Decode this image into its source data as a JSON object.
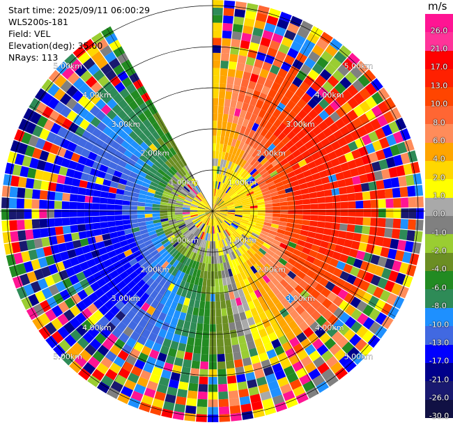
{
  "info": {
    "start_time": "Start time: 2025/09/11 06:00:29",
    "instrument": "WLS200s-181",
    "field": "Field: VEL",
    "elevation": "Elevation(deg): 35.00",
    "nrays": "NRays: 113"
  },
  "chart_data": {
    "type": "heatmap",
    "projection": "polar PPI",
    "field": "VEL",
    "units": "m/s",
    "range_rings_km": [
      1,
      2,
      3,
      4,
      5
    ],
    "range_ring_labels": [
      "1.00km",
      "2.00km",
      "3.00km",
      "4.00km",
      "5.00km"
    ],
    "rays": 113,
    "gates": 28,
    "missing_sector_deg": [
      330,
      360
    ],
    "colorbar": {
      "title": "m/s",
      "ticks": [
        "26.0",
        "21.0",
        "17.0",
        "13.0",
        "10.0",
        "8.0",
        "6.0",
        "4.0",
        "2.0",
        "1.0",
        "0.0",
        "-1.0",
        "-2.0",
        "-4.0",
        "-6.0",
        "-8.0",
        "-10.0",
        "-13.0",
        "-17.0",
        "-21.0",
        "-26.0",
        "-30.0"
      ],
      "colors": [
        "#ff1493",
        "#ff3399",
        "#ff0000",
        "#ff2000",
        "#ff4500",
        "#ff6633",
        "#ff8c5a",
        "#ffa500",
        "#ffd700",
        "#ffff00",
        "#a9a9a9",
        "#808080",
        "#9acd32",
        "#6b8e23",
        "#228b22",
        "#2e8b57",
        "#1e90ff",
        "#4169e1",
        "#0000ff",
        "#00008b",
        "#191970",
        "#111144"
      ]
    },
    "pattern": "dealiased radial velocity: positive (red/orange) on east side, negative (blue/green) on west side, yellow near origin, noisy multicolor beyond ~3.5 km"
  }
}
